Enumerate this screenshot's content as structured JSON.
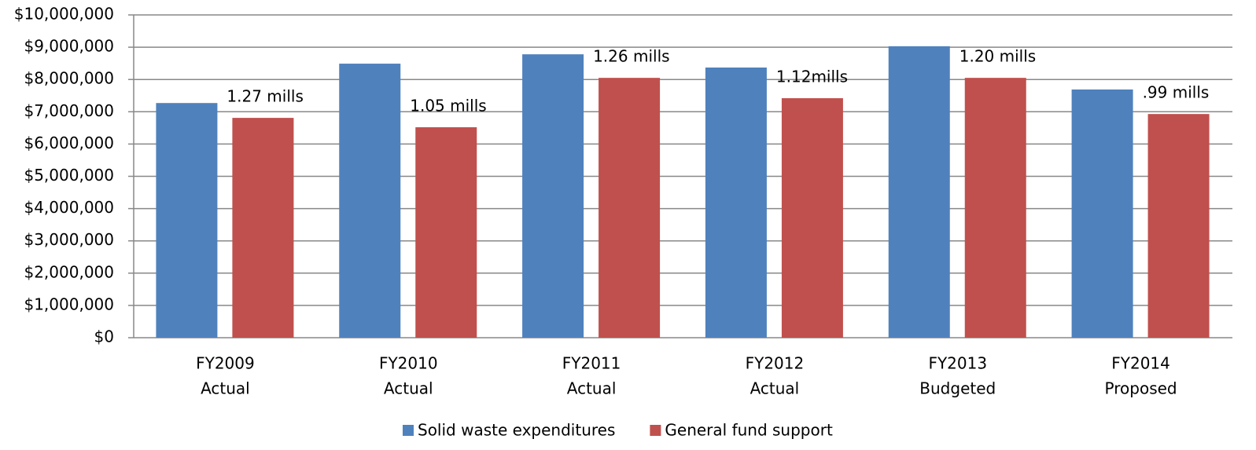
{
  "chart_data": {
    "type": "bar",
    "categories": [
      [
        "FY2009",
        "Actual"
      ],
      [
        "FY2010",
        "Actual"
      ],
      [
        "FY2011",
        "Actual"
      ],
      [
        "FY2012",
        "Actual"
      ],
      [
        "FY2013",
        "Budgeted"
      ],
      [
        "FY2014",
        "Proposed"
      ]
    ],
    "series": [
      {
        "name": "Solid waste expenditures",
        "color": "#4f81bd",
        "values": [
          7270000,
          8490000,
          8780000,
          8370000,
          9030000,
          7690000
        ]
      },
      {
        "name": "General fund support",
        "color": "#c0504d",
        "values": [
          6810000,
          6520000,
          8050000,
          7420000,
          8050000,
          6930000
        ]
      }
    ],
    "annotations": [
      "1.27 mills",
      "1.05 mills",
      "1.26 mills",
      "1.12mills",
      "1.20 mills",
      ".99 mills"
    ],
    "ylim": [
      0,
      10000000
    ],
    "yticks": [
      {
        "value": 0,
        "label": "$0"
      },
      {
        "value": 1000000,
        "label": "$1,000,000"
      },
      {
        "value": 2000000,
        "label": "$2,000,000"
      },
      {
        "value": 3000000,
        "label": "$3,000,000"
      },
      {
        "value": 4000000,
        "label": "$4,000,000"
      },
      {
        "value": 5000000,
        "label": "$5,000,000"
      },
      {
        "value": 6000000,
        "label": "$6,000,000"
      },
      {
        "value": 7000000,
        "label": "$7,000,000"
      },
      {
        "value": 8000000,
        "label": "$8,000,000"
      },
      {
        "value": 9000000,
        "label": "$9,000,000"
      },
      {
        "value": 10000000,
        "label": "$10,000,000"
      }
    ],
    "grid": true,
    "legend": "bottom"
  }
}
